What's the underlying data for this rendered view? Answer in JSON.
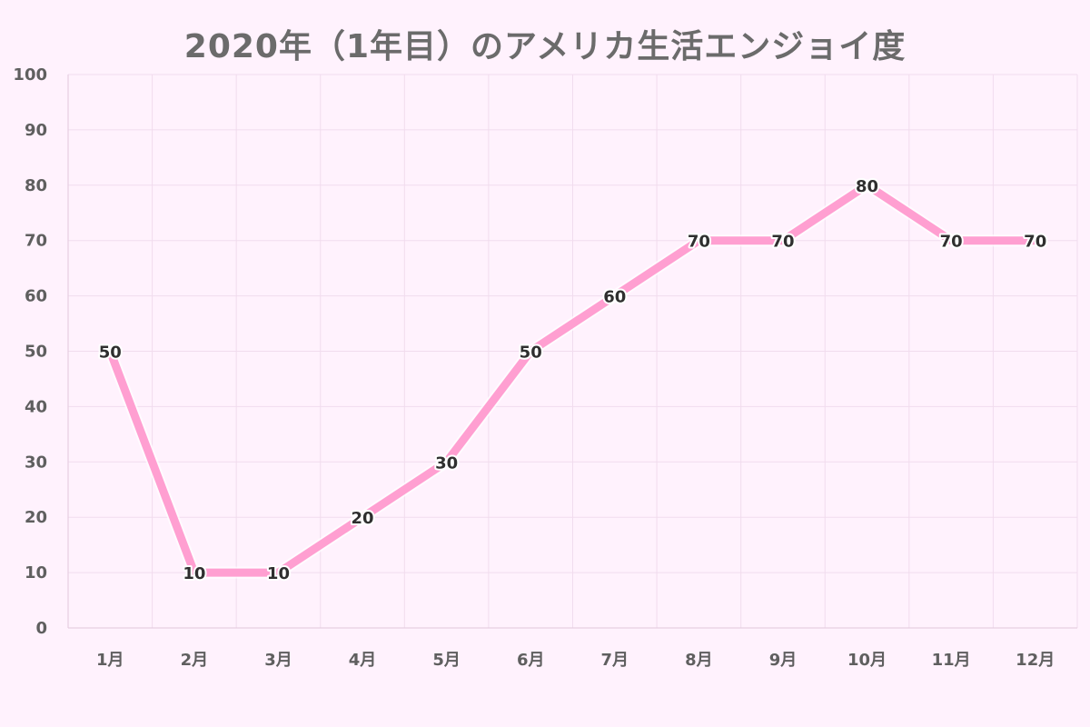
{
  "chart_data": {
    "type": "line",
    "title": "2020年（1年目）のアメリカ生活エンジョイ度",
    "categories": [
      "1月",
      "2月",
      "3月",
      "4月",
      "5月",
      "6月",
      "7月",
      "8月",
      "9月",
      "10月",
      "11月",
      "12月"
    ],
    "values": [
      50,
      10,
      10,
      20,
      30,
      50,
      60,
      70,
      70,
      80,
      70,
      70
    ],
    "ylim": [
      0,
      100
    ],
    "yticks": [
      0,
      10,
      20,
      30,
      40,
      50,
      60,
      70,
      80,
      90,
      100
    ],
    "xlabel": "",
    "ylabel": "",
    "grid": true,
    "legend": "none",
    "line_color": "#ff9fd1",
    "background": "#fff2fd",
    "data_labels": true
  }
}
